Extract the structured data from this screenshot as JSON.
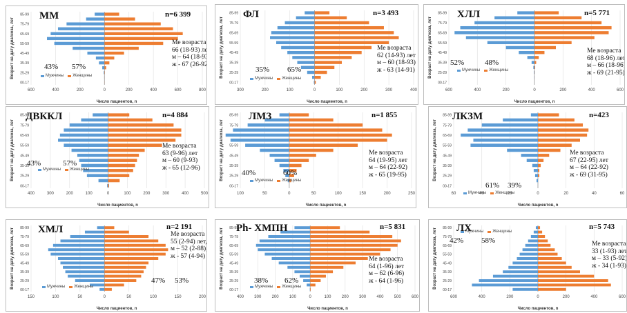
{
  "common": {
    "ylabel": "Возраст на дату диагноза, лет",
    "xlabel": "Число пациентов, n",
    "legend_male": "Мужчины",
    "legend_female": "Женщины",
    "age_groups": [
      "00-17",
      "18-24",
      "25-29",
      "30-34",
      "35-39",
      "40-44",
      "45-49",
      "50-54",
      "55-59",
      "60-64",
      "65-69",
      "70-74",
      "75-79",
      "80-84",
      "85-99"
    ],
    "male_color": "#5b9bd5",
    "female_color": "#ed7d31"
  },
  "chart_data": [
    {
      "type": "bar",
      "title": "ММ",
      "n": "n=6 399",
      "male_pct": "43%",
      "female_pct": "57%",
      "me": [
        "Ме возраста",
        "66 (18-93) лет",
        "м – 64 (18-93)",
        "ж - 67 (26-92)"
      ],
      "ticks": [
        "600",
        "400",
        "200",
        "0",
        "200",
        "400",
        "600",
        "800"
      ],
      "xlim": [
        -600,
        800
      ],
      "male": [
        1,
        2,
        6,
        18,
        45,
        70,
        140,
        260,
        410,
        470,
        440,
        380,
        310,
        150,
        80
      ],
      "female": [
        1,
        1,
        3,
        14,
        40,
        80,
        160,
        280,
        480,
        600,
        640,
        560,
        460,
        250,
        120
      ]
    },
    {
      "type": "bar",
      "title": "ФЛ",
      "n": "n=3 493",
      "male_pct": "35%",
      "female_pct": "65%",
      "me": [
        "Ме возраста",
        "62 (14-93) лет",
        "м – 60 (18-93)",
        "ж - 63 (14-91)"
      ],
      "ticks": [
        "300",
        "200",
        "100",
        "0",
        "100",
        "200",
        "300",
        "400"
      ],
      "xlim": [
        -300,
        400
      ],
      "male": [
        3,
        10,
        30,
        55,
        70,
        90,
        110,
        135,
        155,
        180,
        175,
        150,
        120,
        75,
        40
      ],
      "female": [
        5,
        25,
        50,
        80,
        110,
        150,
        190,
        230,
        300,
        340,
        320,
        280,
        220,
        130,
        60
      ]
    },
    {
      "type": "bar",
      "title": "ХЛЛ",
      "n": "n=5 771",
      "male_pct": "52%",
      "female_pct": "48%",
      "me": [
        "Ме возраста",
        "68 (18-96) лет",
        "м – 66 (18-96)",
        "ж - 69 (21-95)"
      ],
      "ticks": [
        "600",
        "400",
        "200",
        "0",
        "200",
        "400",
        "600"
      ],
      "xlim": [
        -600,
        600
      ],
      "male": [
        0,
        2,
        4,
        8,
        20,
        50,
        110,
        200,
        330,
        480,
        560,
        520,
        420,
        280,
        120
      ],
      "female": [
        0,
        1,
        2,
        5,
        12,
        30,
        70,
        150,
        260,
        420,
        520,
        540,
        470,
        330,
        170
      ]
    },
    {
      "type": "bar",
      "title": "ДВККЛ",
      "n": "n=4 884",
      "male_pct": "43%",
      "female_pct": "57%",
      "me": [
        "Ме возраста",
        "63 (9-96) лет",
        "м – 60 (9-93)",
        "ж - 65 (12-96)"
      ],
      "ticks": [
        "400",
        "300",
        "200",
        "100",
        "0",
        "100",
        "200",
        "300",
        "400",
        "500"
      ],
      "xlim": [
        -400,
        500
      ],
      "male": [
        5,
        50,
        110,
        130,
        140,
        150,
        160,
        190,
        230,
        260,
        250,
        230,
        200,
        140,
        80
      ],
      "female": [
        5,
        60,
        110,
        130,
        140,
        150,
        160,
        190,
        280,
        350,
        380,
        380,
        340,
        230,
        110
      ]
    },
    {
      "type": "bar",
      "title": "ЛМЗ",
      "n": "n=1 855",
      "male_pct": "40%",
      "female_pct": "60%",
      "me": [
        "Ме возраста",
        "64 (19-95) лет",
        "м – 64 (22-92)",
        "ж - 65 (19-95)"
      ],
      "ticks": [
        "100",
        "50",
        "0",
        "50",
        "100",
        "150",
        "200",
        "250"
      ],
      "xlim": [
        -100,
        250
      ],
      "male": [
        0,
        3,
        8,
        12,
        20,
        30,
        40,
        60,
        90,
        120,
        130,
        115,
        85,
        50,
        20
      ],
      "female": [
        0,
        4,
        10,
        15,
        25,
        40,
        55,
        90,
        140,
        200,
        210,
        190,
        150,
        90,
        40
      ]
    },
    {
      "type": "bar",
      "title": "ЛКЗМ",
      "n": "n=423",
      "male_pct": "61%",
      "female_pct": "39%",
      "me": [
        "Ме возраста",
        "67 (22-95) лет",
        "м – 64 (22-92)",
        "ж - 69 (31-95)"
      ],
      "ticks": [
        "60",
        "40",
        "20",
        "0",
        "20",
        "40",
        "60"
      ],
      "xlim": [
        -60,
        60
      ],
      "male": [
        0,
        1,
        2,
        3,
        4,
        8,
        12,
        22,
        48,
        46,
        55,
        50,
        40,
        25,
        5
      ],
      "female": [
        0,
        0,
        1,
        1,
        2,
        4,
        8,
        16,
        24,
        30,
        35,
        36,
        32,
        26,
        15
      ]
    },
    {
      "type": "bar",
      "title": "ХМЛ",
      "n": "n=2 191",
      "male_pct": "47%",
      "female_pct": "53%",
      "me": [
        "Ме возраста",
        "55 (2-94) лет,",
        "м – 52 (2-88),",
        "ж - 57 (4-94)"
      ],
      "ticks": [
        "150",
        "100",
        "50",
        "0",
        "50",
        "100",
        "150",
        "200"
      ],
      "xlim": [
        -150,
        200
      ],
      "male": [
        10,
        30,
        60,
        75,
        80,
        85,
        90,
        95,
        110,
        115,
        105,
        90,
        70,
        40,
        15
      ],
      "female": [
        15,
        40,
        65,
        75,
        80,
        85,
        90,
        110,
        125,
        130,
        125,
        110,
        90,
        50,
        20
      ]
    },
    {
      "type": "bar",
      "title": "Ph- ХМПН",
      "n": "n=5 831",
      "male_pct": "38%",
      "female_pct": "62%",
      "me": [
        "Ме возраста",
        "64 (1-96) лет",
        "м – 62 (6-96)",
        "ж - 64 (1-96)"
      ],
      "ticks": [
        "400",
        "300",
        "200",
        "100",
        "0",
        "100",
        "200",
        "300",
        "400",
        "500",
        "600"
      ],
      "xlim": [
        -400,
        600
      ],
      "male": [
        2,
        20,
        40,
        60,
        90,
        130,
        180,
        220,
        260,
        300,
        310,
        290,
        240,
        170,
        90
      ],
      "female": [
        3,
        30,
        60,
        90,
        130,
        190,
        260,
        330,
        400,
        460,
        500,
        520,
        470,
        340,
        170
      ]
    },
    {
      "type": "bar",
      "title": "ЛХ",
      "n": "n=5 743",
      "male_pct": "42%",
      "female_pct": "58%",
      "me": [
        "Ме возраста",
        "33 (1-93) лет",
        "м – 33 (5-92)",
        "ж - 34 (1-93)"
      ],
      "ticks": [
        "600",
        "400",
        "200",
        "0",
        "200",
        "400",
        "600"
      ],
      "xlim": [
        -600,
        600
      ],
      "male": [
        180,
        470,
        420,
        320,
        250,
        210,
        180,
        150,
        130,
        110,
        90,
        70,
        50,
        30,
        15
      ],
      "female": [
        200,
        520,
        500,
        400,
        300,
        240,
        200,
        170,
        140,
        120,
        90,
        70,
        50,
        30,
        15
      ]
    }
  ]
}
